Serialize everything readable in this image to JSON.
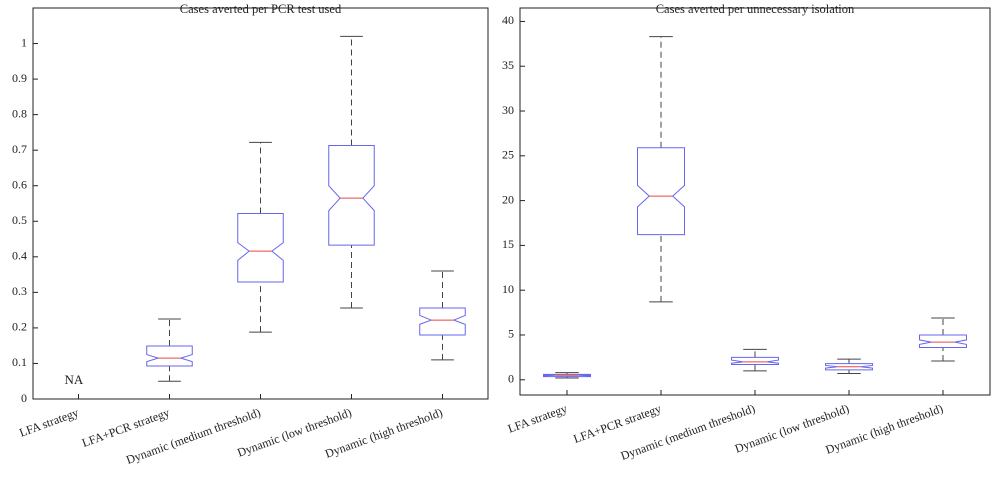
{
  "chart_data": [
    {
      "type": "box",
      "title": "Cases averted per PCR test used",
      "categories": [
        "LFA strategy",
        "LFA+PCR strategy",
        "Dynamic (medium threshold)",
        "Dynamic (low threshold)",
        "Dynamic (high threshold)"
      ],
      "whisker_low": [
        null,
        0.05,
        0.188,
        0.256,
        0.11
      ],
      "q1": [
        null,
        0.093,
        0.329,
        0.433,
        0.18
      ],
      "median": [
        null,
        0.115,
        0.416,
        0.565,
        0.222
      ],
      "q3": [
        null,
        0.149,
        0.522,
        0.713,
        0.256
      ],
      "whisker_high": [
        null,
        0.225,
        0.722,
        1.02,
        0.36
      ],
      "notch_low": [
        null,
        0.105,
        0.39,
        0.53,
        0.21
      ],
      "notch_high": [
        null,
        0.125,
        0.44,
        0.6,
        0.235
      ],
      "annotation": "NA",
      "ylim": [
        0,
        1.1
      ],
      "yticks": [
        0,
        0.1,
        0.2,
        0.3,
        0.4,
        0.5,
        0.6,
        0.7,
        0.8,
        0.9,
        1
      ],
      "box_color": "#6666ee",
      "median_color": "#ee4444",
      "whisker_color": "#444444"
    },
    {
      "type": "box",
      "title": "Cases averted per unnecessary isolation",
      "categories": [
        "LFA strategy",
        "LFA+PCR strategy",
        "Dynamic (medium threshold)",
        "Dynamic (low threshold)",
        "Dynamic (high threshold)"
      ],
      "whisker_low": [
        0.2,
        8.7,
        1.0,
        0.7,
        2.1
      ],
      "q1": [
        0.35,
        16.2,
        1.7,
        1.1,
        3.6
      ],
      "median": [
        0.5,
        20.5,
        2.0,
        1.45,
        4.2
      ],
      "q3": [
        0.6,
        25.9,
        2.5,
        1.8,
        5.0
      ],
      "whisker_high": [
        0.8,
        38.3,
        3.4,
        2.3,
        6.9
      ],
      "notch_low": [
        0.45,
        19.3,
        1.85,
        1.3,
        3.95
      ],
      "notch_high": [
        0.55,
        21.7,
        2.2,
        1.6,
        4.45
      ],
      "ylim": [
        -1.7,
        41.5
      ],
      "yticks": [
        0,
        5,
        10,
        15,
        20,
        25,
        30,
        35,
        40
      ],
      "box_color": "#6666ee",
      "median_color": "#ee4444",
      "whisker_color": "#444444"
    }
  ]
}
